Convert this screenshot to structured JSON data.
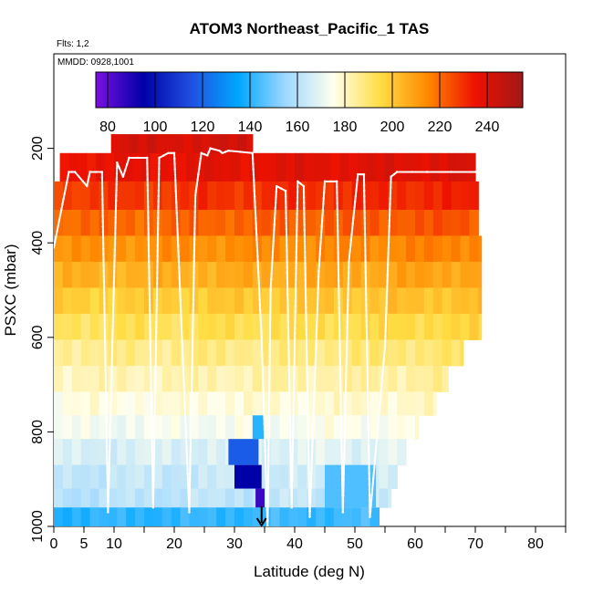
{
  "chart_data": {
    "type": "heatmap",
    "title": "ATOM3 Northeast_Pacific_1 TAS",
    "flights_note": "Flts: 1,2",
    "dates_note": "MMDD: 0928,1001",
    "xlabel": "Latitude (deg N)",
    "ylabel": "PSXC (mbar)",
    "xlim": [
      0,
      85
    ],
    "ylim": [
      1000,
      0
    ],
    "x_ticks": [
      0,
      5,
      10,
      20,
      30,
      40,
      50,
      60,
      70,
      80
    ],
    "y_ticks": [
      200,
      400,
      600,
      800,
      1000
    ],
    "colorbar": {
      "min": 75,
      "max": 255,
      "ticks": [
        80,
        100,
        120,
        140,
        160,
        180,
        200,
        220,
        240
      ],
      "colors": [
        "#7a10e0",
        "#0000a8",
        "#1f4fe0",
        "#00a6ff",
        "#9fd8ff",
        "#ffffee",
        "#ffdd44",
        "#ff8800",
        "#ee1100",
        "#a01818"
      ]
    },
    "layers": [
      {
        "p_top": 170,
        "p_bot": 210,
        "x_start": 9.5,
        "x_end": 33.0,
        "value": 240
      },
      {
        "p_top": 210,
        "p_bot": 270,
        "x_start": 1.0,
        "x_end": 70.0,
        "value": 236
      },
      {
        "p_top": 270,
        "p_bot": 330,
        "x_start": 0.0,
        "x_end": 70.5,
        "value": 228
      },
      {
        "p_top": 330,
        "p_bot": 385,
        "x_start": 0.0,
        "x_end": 70.5,
        "value": 220
      },
      {
        "p_top": 385,
        "p_bot": 440,
        "x_start": 0.0,
        "x_end": 71.0,
        "value": 212
      },
      {
        "p_top": 440,
        "p_bot": 495,
        "x_start": 0.0,
        "x_end": 71.0,
        "value": 205
      },
      {
        "p_top": 495,
        "p_bot": 550,
        "x_start": 0.0,
        "x_end": 71.0,
        "value": 198
      },
      {
        "p_top": 550,
        "p_bot": 605,
        "x_start": 0.0,
        "x_end": 71.0,
        "value": 192
      },
      {
        "p_top": 605,
        "p_bot": 660,
        "x_start": 0.0,
        "x_end": 68.0,
        "value": 186
      },
      {
        "p_top": 660,
        "p_bot": 715,
        "x_start": 0.0,
        "x_end": 65.5,
        "value": 181
      },
      {
        "p_top": 715,
        "p_bot": 765,
        "x_start": 0.0,
        "x_end": 63.5,
        "value": 176
      },
      {
        "p_top": 765,
        "p_bot": 815,
        "x_start": 0.0,
        "x_end": 60.5,
        "value": 172
      },
      {
        "p_top": 815,
        "p_bot": 870,
        "x_start": 0.0,
        "x_end": 58.5,
        "value": 166
      },
      {
        "p_top": 870,
        "p_bot": 920,
        "x_start": 0.0,
        "x_end": 57.0,
        "value": 162
      },
      {
        "p_top": 920,
        "p_bot": 960,
        "x_start": 0.0,
        "x_end": 56.0,
        "value": 160
      },
      {
        "p_top": 960,
        "p_bot": 1000,
        "x_start": 0.0,
        "x_end": 54.0,
        "value": 140
      }
    ],
    "cold_patches": [
      {
        "p_top": 815,
        "p_bot": 870,
        "x_start": 29.0,
        "x_end": 34.0,
        "value": 118
      },
      {
        "p_top": 870,
        "p_bot": 920,
        "x_start": 30.0,
        "x_end": 34.5,
        "value": 95
      },
      {
        "p_top": 920,
        "p_bot": 960,
        "x_start": 33.5,
        "x_end": 35.0,
        "value": 85
      },
      {
        "p_top": 765,
        "p_bot": 815,
        "x_start": 33.0,
        "x_end": 35.0,
        "value": 140
      },
      {
        "p_top": 870,
        "p_bot": 960,
        "x_start": 45.0,
        "x_end": 53.5,
        "value": 145
      }
    ],
    "flight_track": {
      "lat": [
        0,
        2.5,
        3.5,
        5.5,
        6.0,
        8.0,
        9.0,
        10.5,
        11.5,
        12.5,
        15.5,
        16.5,
        17.5,
        19.0,
        20.0,
        22.5,
        23.5,
        24.5,
        25.5,
        26.0,
        27.5,
        28.0,
        29.0,
        33.0,
        34.5,
        35.5,
        36.0,
        37.0,
        38.5,
        39.5,
        40.5,
        41.5,
        42.5,
        44.0,
        45.0,
        47.0,
        48.0,
        49.0,
        50.5,
        51.5,
        52.5,
        55.0,
        56.0,
        57.0,
        62.0,
        70.0
      ],
      "psxc": [
        410,
        250,
        250,
        280,
        250,
        250,
        970,
        230,
        260,
        220,
        220,
        960,
        220,
        210,
        210,
        970,
        300,
        210,
        215,
        200,
        205,
        210,
        205,
        210,
        600,
        1000,
        500,
        280,
        290,
        960,
        270,
        280,
        980,
        460,
        270,
        270,
        970,
        440,
        255,
        255,
        980,
        620,
        260,
        250,
        250,
        250
      ]
    },
    "arrow_latitude": 34.5
  }
}
